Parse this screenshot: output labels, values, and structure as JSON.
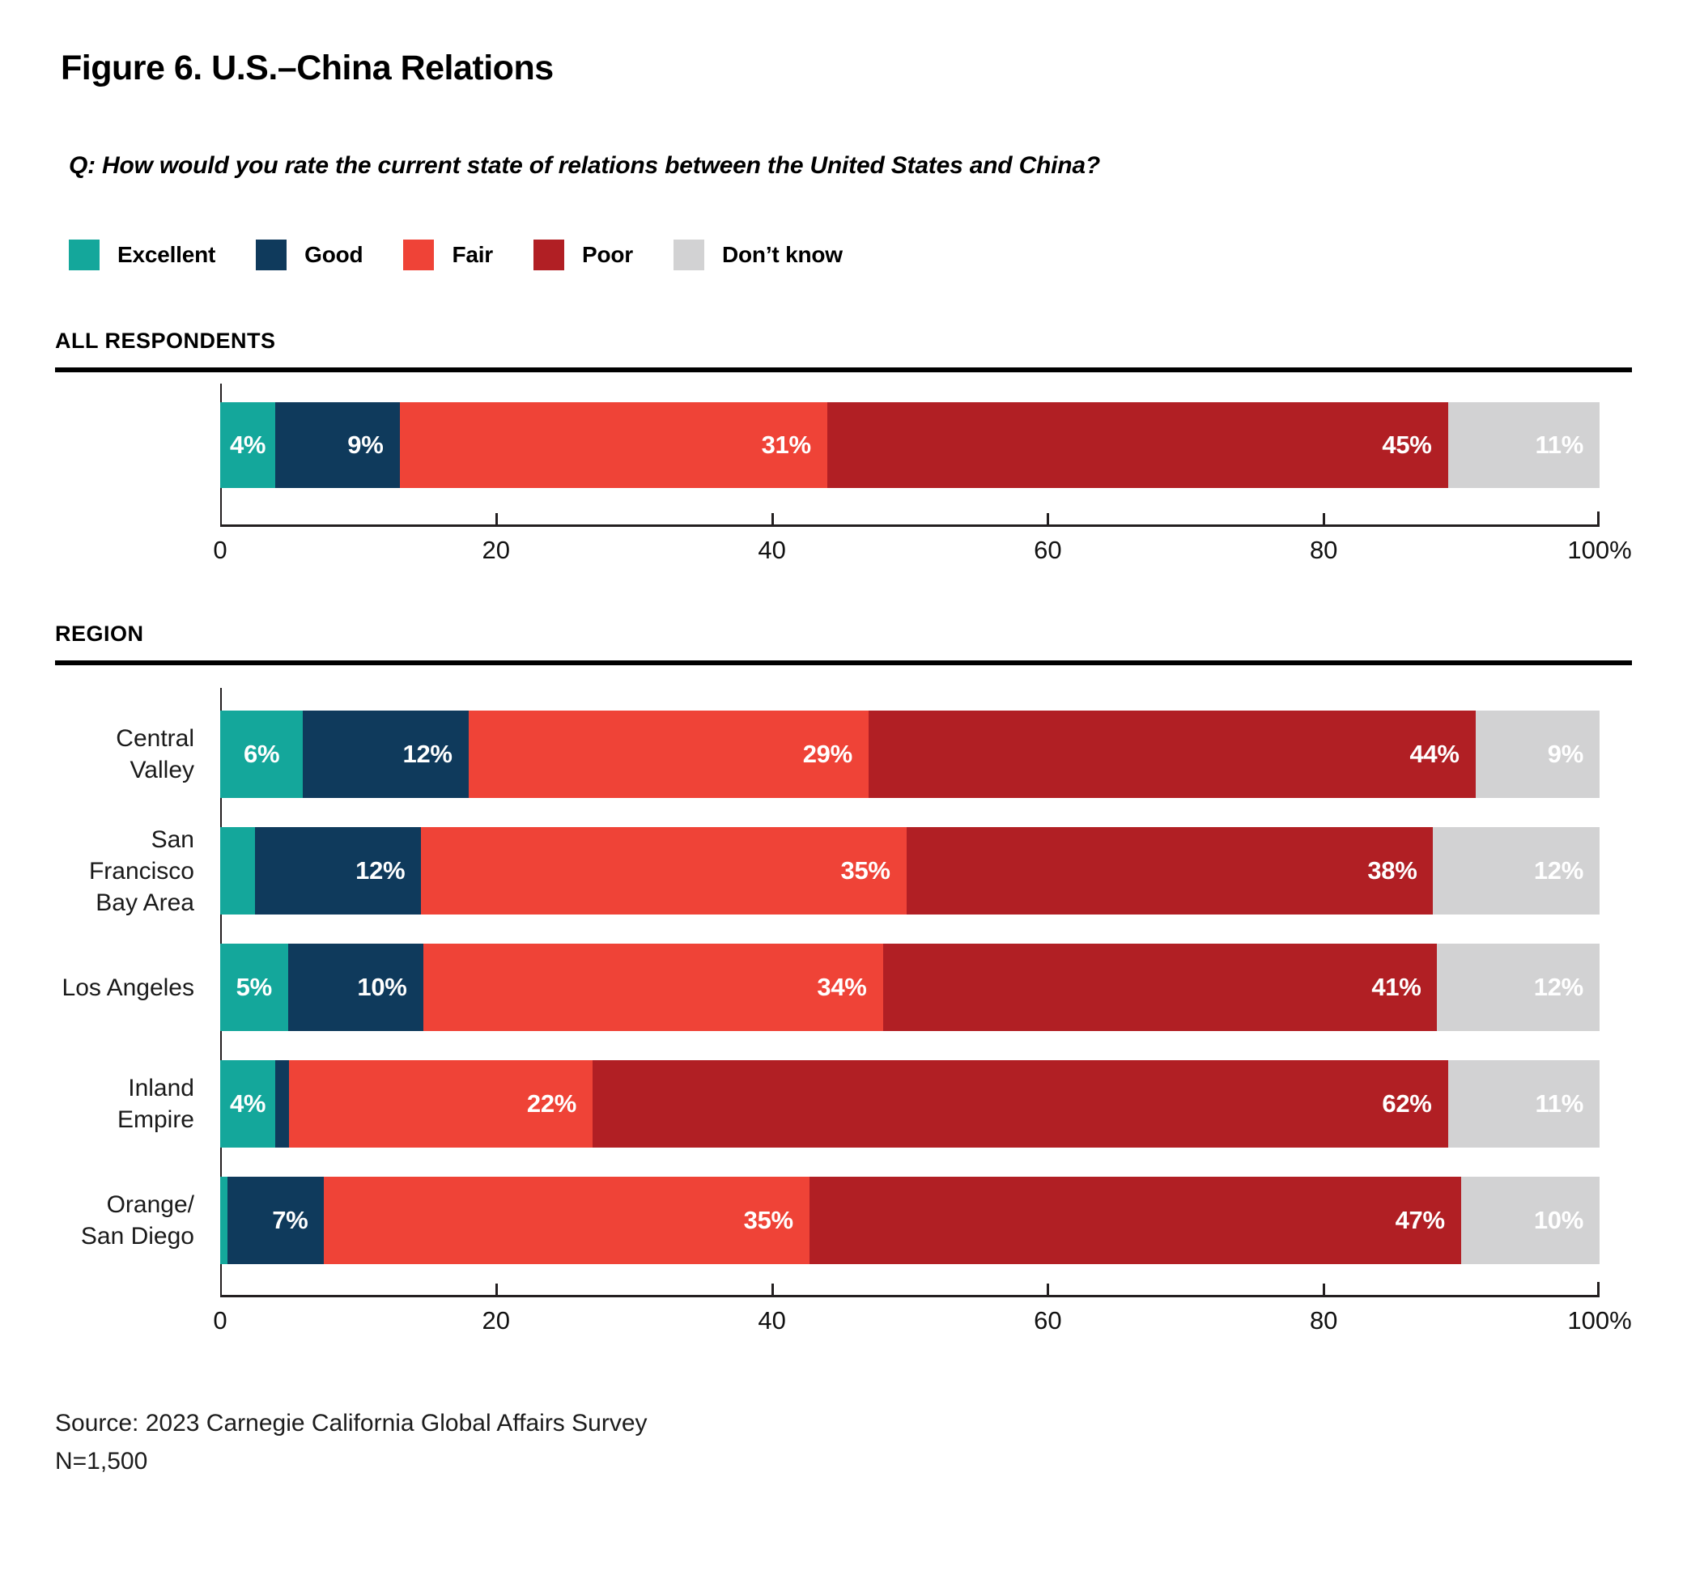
{
  "title": "Figure 6. U.S.–China Relations",
  "question": "Q: How would you rate the current state of relations between the United States and China?",
  "legend": [
    {
      "label": "Excellent",
      "color": "#14a79b"
    },
    {
      "label": "Good",
      "color": "#0f3a5c"
    },
    {
      "label": "Fair",
      "color": "#ef4337"
    },
    {
      "label": "Poor",
      "color": "#b11f24"
    },
    {
      "label": "Don’t know",
      "color": "#d2d2d3"
    }
  ],
  "sections": {
    "all": {
      "heading": "ALL RESPONDENTS"
    },
    "region": {
      "heading": "REGION"
    }
  },
  "axis": {
    "ticks": [
      "0",
      "20",
      "40",
      "60",
      "80",
      "100%"
    ],
    "positions": [
      0,
      20,
      40,
      60,
      80,
      100
    ]
  },
  "source_line1": "Source: 2023 Carnegie California Global Affairs Survey",
  "source_line2": "N=1,500",
  "chart_data": {
    "type": "bar",
    "stacked": true,
    "orientation": "horizontal",
    "unit": "percent",
    "title": "Figure 6. U.S.–China Relations",
    "xlabel": "",
    "ylabel": "",
    "xlim": [
      0,
      100
    ],
    "x_ticks": [
      0,
      20,
      40,
      60,
      80,
      100
    ],
    "legend_position": "top",
    "grid": false,
    "categories": [
      "All respondents",
      "Central Valley",
      "San Francisco Bay Area",
      "Los Angeles",
      "Inland Empire",
      "Orange/San Diego"
    ],
    "series": [
      {
        "name": "Excellent",
        "color": "#14a79b",
        "values": [
          4,
          6,
          2.5,
          5,
          4,
          0.5
        ]
      },
      {
        "name": "Good",
        "color": "#0f3a5c",
        "values": [
          9,
          12,
          12,
          10,
          1,
          7
        ]
      },
      {
        "name": "Fair",
        "color": "#ef4337",
        "values": [
          31,
          29,
          35,
          34,
          22,
          35
        ]
      },
      {
        "name": "Poor",
        "color": "#b11f24",
        "values": [
          45,
          44,
          38,
          41,
          62,
          47
        ]
      },
      {
        "name": "Don't know",
        "color": "#d2d2d3",
        "values": [
          11,
          9,
          12,
          12,
          11,
          10
        ]
      }
    ],
    "value_labels": [
      [
        "4%",
        "9%",
        "31%",
        "45%",
        "11%"
      ],
      [
        "6%",
        "12%",
        "29%",
        "44%",
        "9%"
      ],
      [
        "",
        "12%",
        "35%",
        "38%",
        "12%"
      ],
      [
        "5%",
        "10%",
        "34%",
        "41%",
        "12%"
      ],
      [
        "4%",
        "",
        "22%",
        "62%",
        "11%"
      ],
      [
        "",
        "7%",
        "35%",
        "47%",
        "10%"
      ]
    ]
  },
  "layout_rows": {
    "all": {
      "row_indices": [
        0
      ],
      "row_labels": [
        []
      ]
    },
    "region": {
      "row_indices": [
        1,
        2,
        3,
        4,
        5
      ],
      "row_labels": [
        [
          "Central Valley"
        ],
        [
          "San Francisco",
          "Bay Area"
        ],
        [
          "Los Angeles"
        ],
        [
          "Inland Empire"
        ],
        [
          "Orange/",
          "San Diego"
        ]
      ]
    }
  }
}
